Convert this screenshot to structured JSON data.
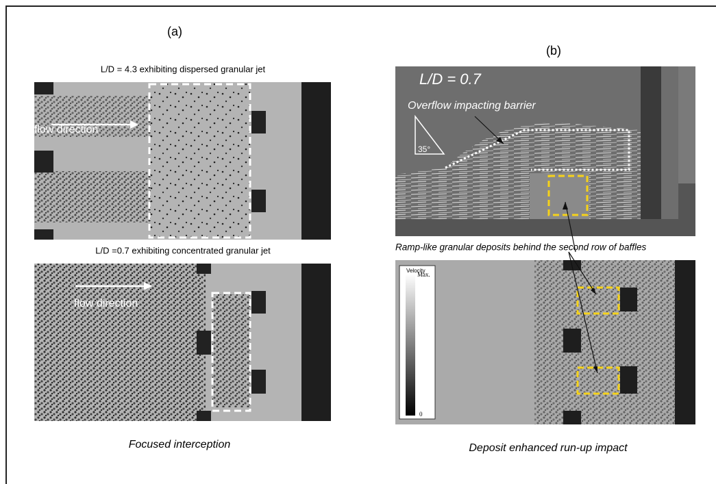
{
  "panel_a": {
    "label": "(a)",
    "top": {
      "caption": "L/D = 4.3 exhibiting dispersed granular jet",
      "flow_label": "flow direction"
    },
    "bottom": {
      "caption": "L/D =0.7 exhibiting concentrated granular jet",
      "flow_label": "flow direction"
    },
    "caption": "Focused interception"
  },
  "panel_b": {
    "label": "(b)",
    "top": {
      "ratio": "L/D = 0.7",
      "annotation": "Overflow impacting barrier",
      "angle": "35°"
    },
    "middle_annotation": "Ramp-like granular deposits behind the second row of baffles",
    "colorbar": {
      "title": "Velocity",
      "max": "Max.",
      "min": "0"
    },
    "caption": "Deposit enhanced run-up impact"
  }
}
